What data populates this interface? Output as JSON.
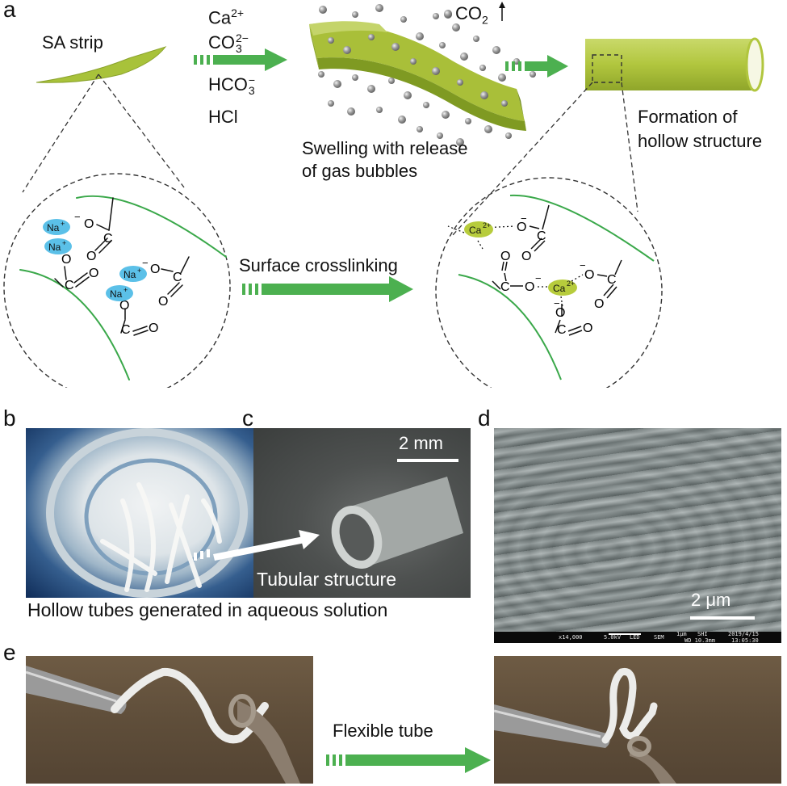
{
  "panel_labels": {
    "a": "a",
    "b": "b",
    "c": "c",
    "d": "d",
    "e": "e"
  },
  "panel_a": {
    "strip_label": "SA strip",
    "reagents": {
      "ca": "Ca",
      "ca_sup": "2+",
      "co3": "CO",
      "co3_sub": "3",
      "co3_sup": "2−",
      "hco3": "HCO",
      "hco3_sub": "3",
      "hco3_sup": "−",
      "hcl": "HCl"
    },
    "co2_label": "CO",
    "co2_sub": "2",
    "swelling_line1": "Swelling with release",
    "swelling_line2": "of gas bubbles",
    "formation_line1": "Formation of",
    "formation_line2": "hollow structure",
    "crosslink_label": "Surface crosslinking",
    "ion_na": "Na",
    "ion_na_sup": "+",
    "ion_ca": "Ca",
    "ion_ca_sup": "2+",
    "atom_c": "C",
    "atom_o": "O",
    "neg": "−",
    "colors": {
      "strip": "#a8c23a",
      "arrow": "#4cb050",
      "chain": "#3aa84a",
      "na_ion": "#5bc0e8",
      "ca_ion": "#b7cc3c",
      "bubble": "#8c8c8c"
    }
  },
  "panel_b": {
    "caption": "Hollow tubes generated in aqueous solution"
  },
  "panel_c": {
    "scale": "2 mm",
    "label": "Tubular structure"
  },
  "panel_d": {
    "scale": "2 μm",
    "sem_info": [
      "x14,000",
      "5.0kV",
      "LED",
      "SEM",
      "1μm",
      "SHI",
      "WD 10.3mm",
      "2019/4/15",
      "13:05:30"
    ]
  },
  "panel_e": {
    "label": "Flexible tube"
  }
}
